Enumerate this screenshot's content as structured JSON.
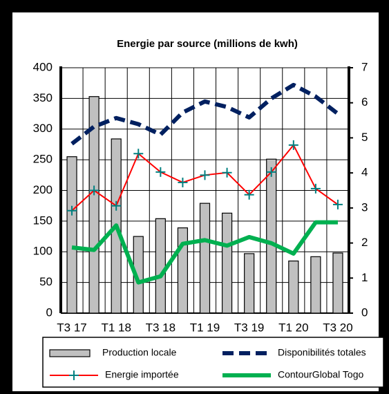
{
  "chart_data": {
    "type": "bar",
    "title": "Energie par source (millions de kwh)",
    "y2_label": "Production locale",
    "categories": [
      "T3 17",
      null,
      "T1 18",
      null,
      "T3 18",
      null,
      "T1 19",
      null,
      "T3 19",
      null,
      "T1 20",
      null,
      "T3 20"
    ],
    "series": [
      {
        "name": "Production locale",
        "type": "bar",
        "color": "#c0c0c0",
        "values": [
          255,
          353,
          284,
          125,
          154,
          139,
          179,
          163,
          97,
          251,
          85,
          92,
          98
        ]
      },
      {
        "name": "Disponibilités totales",
        "type": "line",
        "style": "dashed",
        "color": "#002060",
        "values": [
          276,
          304,
          318,
          308,
          291,
          327,
          345,
          336,
          319,
          350,
          372,
          353,
          325
        ]
      },
      {
        "name": "Energie importée",
        "type": "line",
        "marker": "plus",
        "color": "#ff0000",
        "marker_color": "#008080",
        "values": [
          167,
          200,
          175,
          260,
          230,
          213,
          225,
          229,
          193,
          230,
          274,
          203,
          177
        ]
      },
      {
        "name": "ContourGlobal Togo",
        "type": "line",
        "color": "#00b050",
        "values": [
          107,
          103,
          143,
          50,
          60,
          113,
          119,
          110,
          124,
          114,
          97,
          148,
          148
        ]
      }
    ],
    "ylim": [
      0,
      400
    ],
    "yticks": [
      0,
      50,
      100,
      150,
      200,
      250,
      300,
      350,
      400
    ],
    "y2lim": [
      0,
      7
    ],
    "y2ticks": [
      0,
      1,
      2,
      3,
      4,
      5,
      6,
      7
    ],
    "grid": true,
    "legend": "bottom"
  }
}
